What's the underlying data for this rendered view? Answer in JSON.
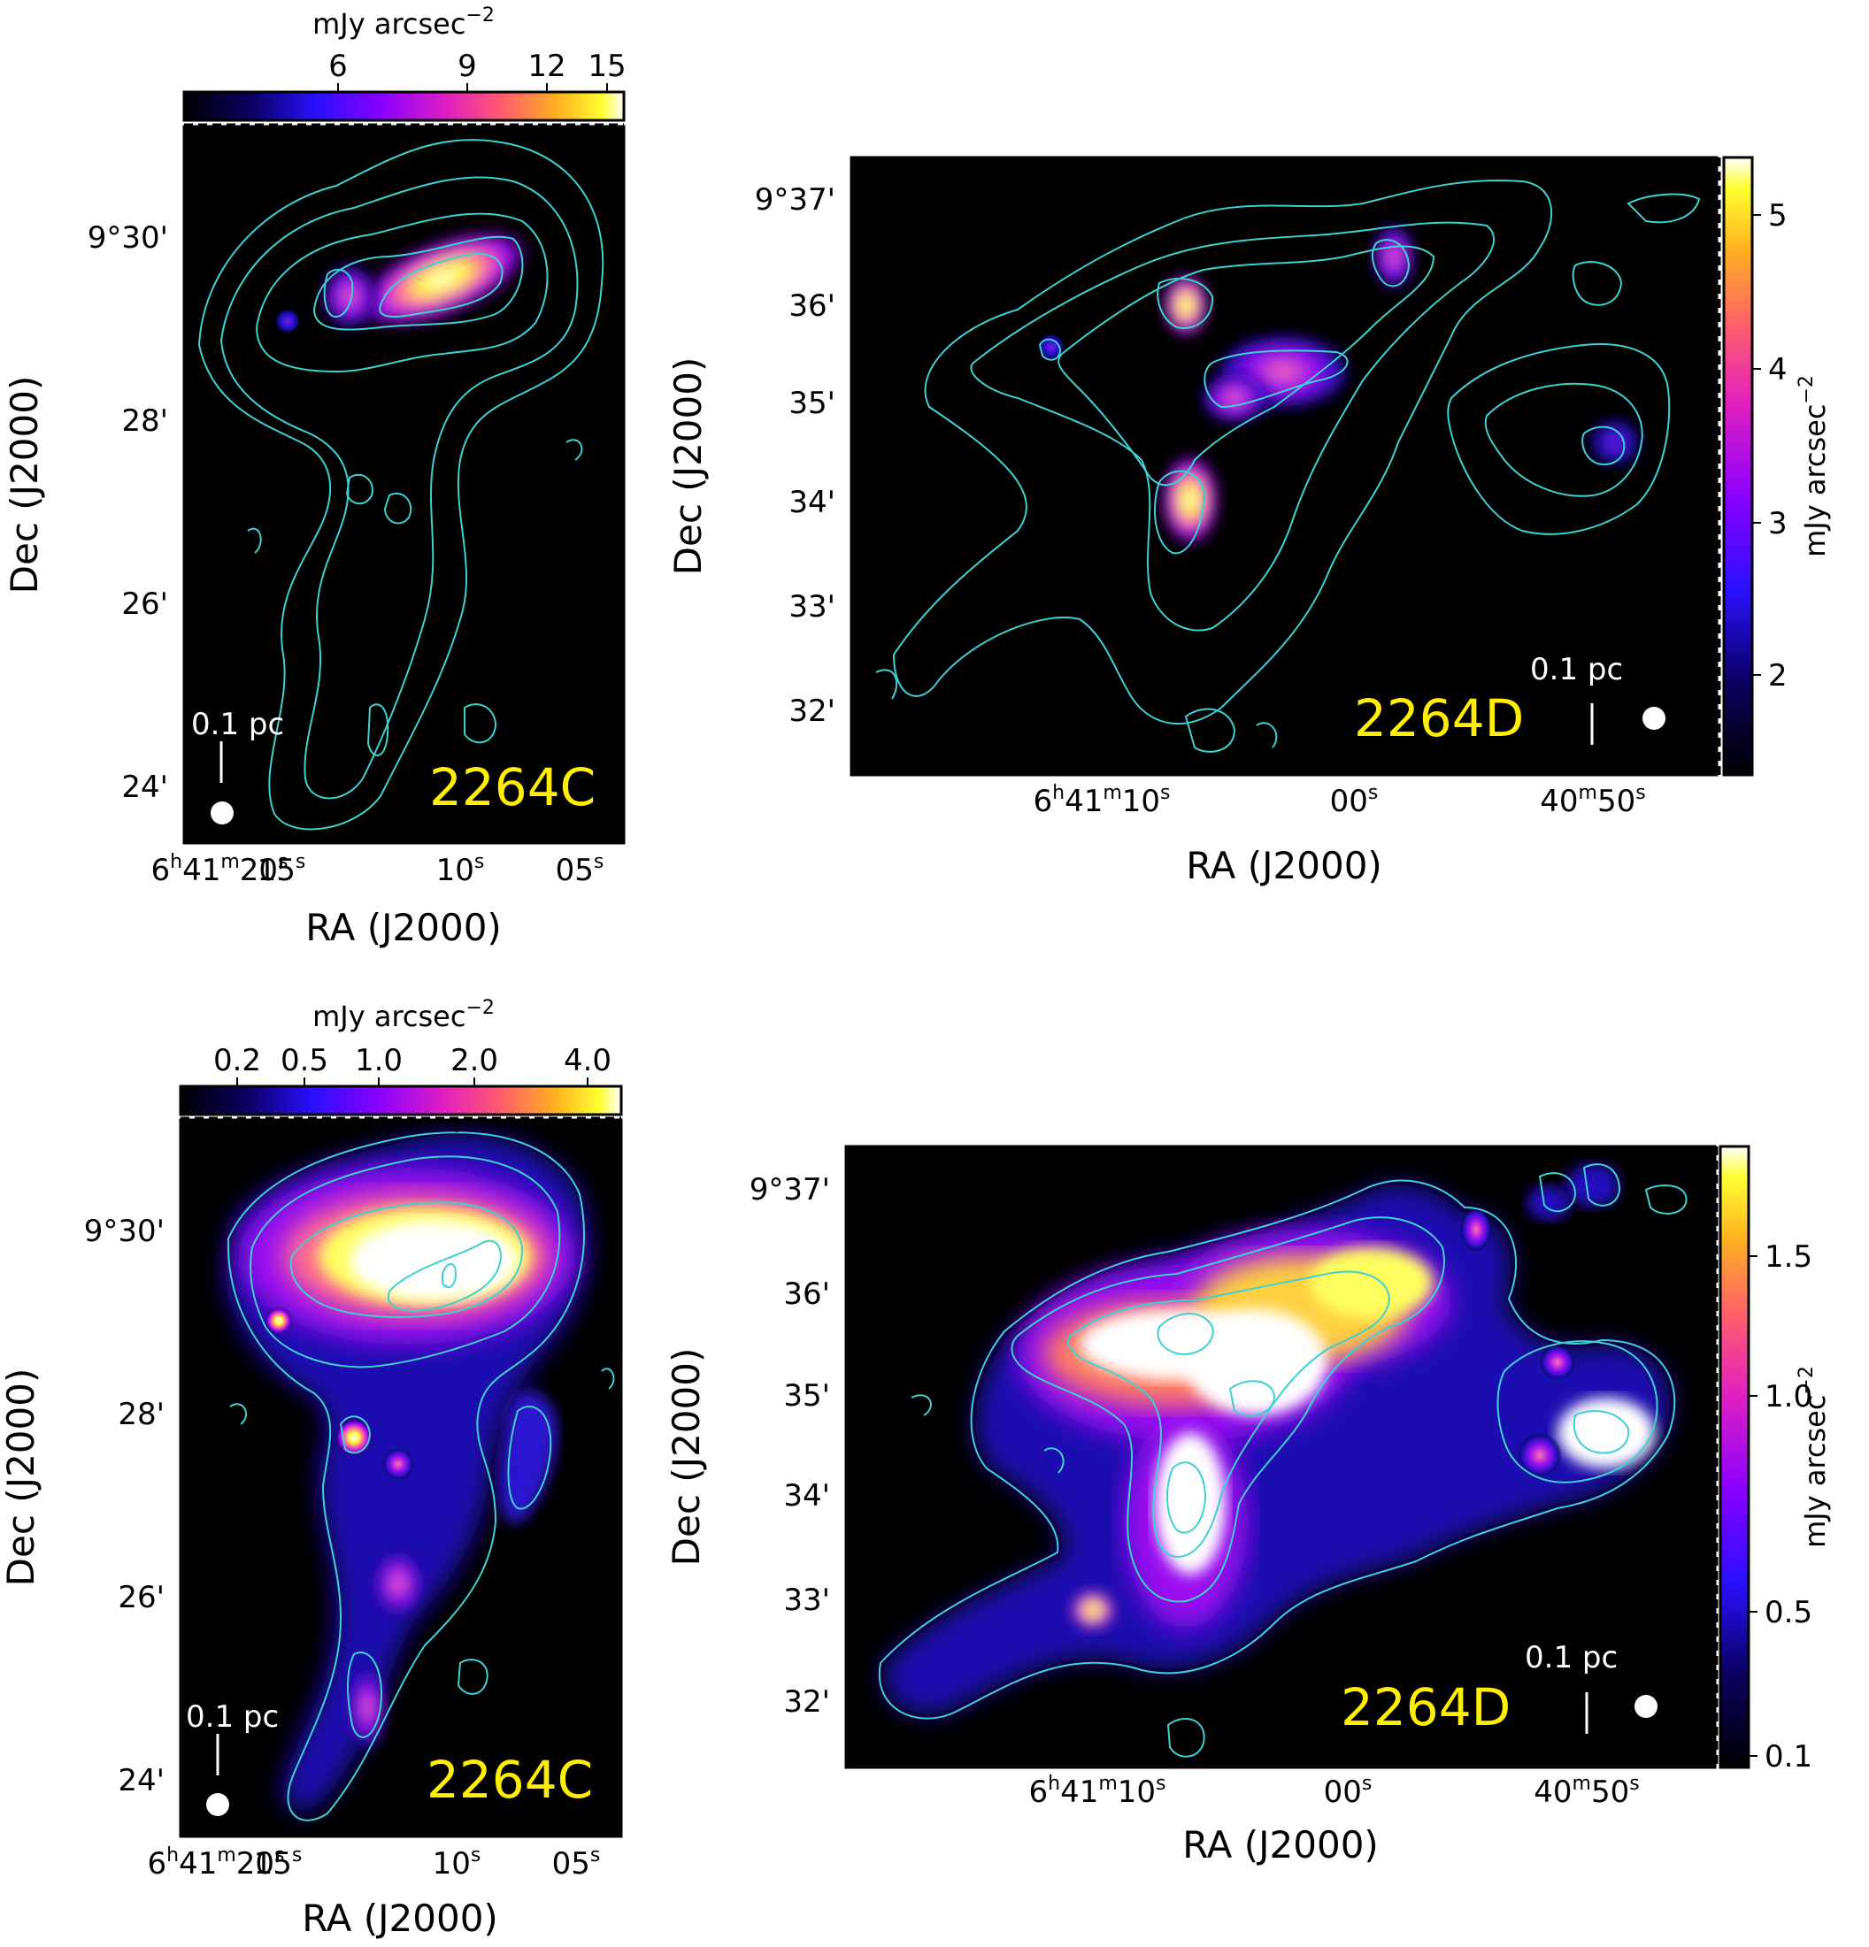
{
  "figure": {
    "panels": [
      {
        "id": "p1",
        "region_label": "2264C",
        "scale_label": "0.1 pc",
        "xlabel": "RA (J2000)",
        "ylabel": "Dec (J2000)",
        "xticks": [
          {
            "label": "6h41m20s",
            "major": "6",
            "h": "h",
            "m1": "41",
            "m": "m",
            "s1": "20",
            "s": "s"
          },
          {
            "label": "15s",
            "major": "15",
            "s": "s"
          },
          {
            "label": "10s",
            "major": "10",
            "s": "s"
          },
          {
            "label": "05s",
            "major": "05",
            "s": "s"
          }
        ],
        "yticks": [
          "9°30'",
          "28'",
          "26'",
          "24'"
        ],
        "colorbar": {
          "orientation": "horizontal",
          "label": "mJy arcsec⁻²",
          "label_main": "mJy arcsec",
          "label_sup": "−2",
          "ticks": [
            "6",
            "9",
            "12",
            "15"
          ],
          "colormap": "gnuplot2"
        },
        "contour_color": "#40d0d0"
      },
      {
        "id": "p2",
        "region_label": "2264D",
        "scale_label": "0.1 pc",
        "xlabel": "RA (J2000)",
        "ylabel": "Dec (J2000)",
        "xticks": [
          {
            "label": "6h41m10s"
          },
          {
            "label": "00s"
          },
          {
            "label": "40m50s"
          }
        ],
        "yticks": [
          "9°37'",
          "36'",
          "35'",
          "34'",
          "33'",
          "32'"
        ],
        "colorbar": {
          "orientation": "vertical",
          "label": "mJy arcsec⁻²",
          "label_main": "mJy arcsec",
          "label_sup": "−2",
          "ticks": [
            "5",
            "4",
            "3",
            "2"
          ],
          "colormap": "gnuplot2"
        },
        "contour_color": "#40d0d0"
      },
      {
        "id": "p3",
        "region_label": "2264C",
        "scale_label": "0.1 pc",
        "xlabel": "RA (J2000)",
        "ylabel": "Dec (J2000)",
        "xticks": [
          {
            "label": "6h41m20s"
          },
          {
            "label": "15s"
          },
          {
            "label": "10s"
          },
          {
            "label": "05s"
          }
        ],
        "yticks": [
          "9°30'",
          "28'",
          "26'",
          "24'"
        ],
        "colorbar": {
          "orientation": "horizontal",
          "label": "mJy arcsec⁻²",
          "label_main": "mJy arcsec",
          "label_sup": "−2",
          "ticks": [
            "0.2",
            "0.5",
            "1.0",
            "2.0",
            "4.0"
          ],
          "colormap": "gnuplot2"
        },
        "contour_color": "#40d0d0"
      },
      {
        "id": "p4",
        "region_label": "2264D",
        "scale_label": "0.1 pc",
        "xlabel": "RA (J2000)",
        "ylabel": "Dec (J2000)",
        "xticks": [
          {
            "label": "6h41m10s"
          },
          {
            "label": "00s"
          },
          {
            "label": "40m50s"
          }
        ],
        "yticks": [
          "9°37'",
          "36'",
          "35'",
          "34'",
          "33'",
          "32'"
        ],
        "colorbar": {
          "orientation": "vertical",
          "label": "mJy arcsec⁻²",
          "label_main": "mJy arcsec",
          "label_sup": "−2",
          "ticks": [
            "1.5",
            "1.0",
            "0.5",
            "0.1"
          ],
          "colormap": "gnuplot2"
        },
        "contour_color": "#40d0d0"
      }
    ]
  },
  "chart_data": [
    {
      "type": "heatmap",
      "title": "",
      "region": "2264C",
      "xlabel": "RA (J2000)",
      "ylabel": "Dec (J2000)",
      "x_tick_labels": [
        "6h41m20s",
        "15s",
        "10s",
        "05s"
      ],
      "y_tick_labels": [
        "9°30'",
        "28'",
        "26'",
        "24'"
      ],
      "colorbar_label": "mJy arcsec⁻²",
      "colorbar_ticks": [
        6,
        9,
        12,
        15
      ],
      "colorbar_range": [
        3,
        16
      ],
      "contours": true
    },
    {
      "type": "heatmap",
      "title": "",
      "region": "2264D",
      "xlabel": "RA (J2000)",
      "ylabel": "Dec (J2000)",
      "x_tick_labels": [
        "6h41m10s",
        "00s",
        "40m50s"
      ],
      "y_tick_labels": [
        "9°37'",
        "36'",
        "35'",
        "34'",
        "33'",
        "32'"
      ],
      "colorbar_label": "mJy arcsec⁻²",
      "colorbar_ticks": [
        2,
        3,
        4,
        5
      ],
      "colorbar_range": [
        1.3,
        5.4
      ],
      "contours": true
    },
    {
      "type": "heatmap",
      "title": "",
      "region": "2264C",
      "xlabel": "RA (J2000)",
      "ylabel": "Dec (J2000)",
      "x_tick_labels": [
        "6h41m20s",
        "15s",
        "10s",
        "05s"
      ],
      "y_tick_labels": [
        "9°30'",
        "28'",
        "26'",
        "24'"
      ],
      "colorbar_label": "mJy arcsec⁻²",
      "colorbar_ticks": [
        0.2,
        0.5,
        1.0,
        2.0,
        4.0
      ],
      "colorbar_scale": "log",
      "contours": true
    },
    {
      "type": "heatmap",
      "title": "",
      "region": "2264D",
      "xlabel": "RA (J2000)",
      "ylabel": "Dec (J2000)",
      "x_tick_labels": [
        "6h41m10s",
        "00s",
        "40m50s"
      ],
      "y_tick_labels": [
        "9°37'",
        "36'",
        "35'",
        "34'",
        "33'",
        "32'"
      ],
      "colorbar_label": "mJy arcsec⁻²",
      "colorbar_ticks": [
        1.5,
        1.0,
        0.5,
        0.1
      ],
      "colorbar_range": [
        0.05,
        1.8
      ],
      "contours": true
    }
  ]
}
